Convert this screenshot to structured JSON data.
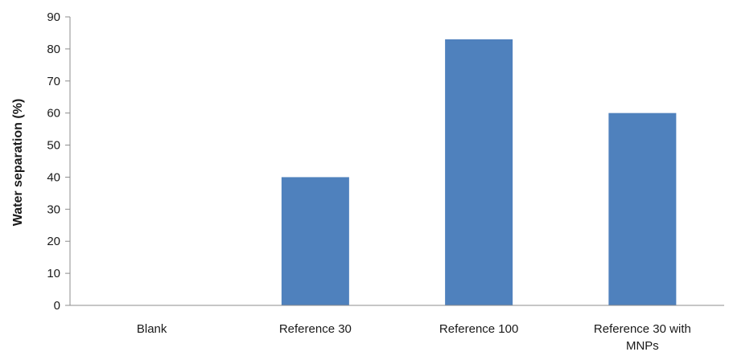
{
  "chart_data": {
    "type": "bar",
    "categories": [
      "Blank",
      "Reference 30",
      "Reference 100",
      "Reference 30 with MNPs"
    ],
    "category_lines": [
      [
        "Blank"
      ],
      [
        "Reference 30"
      ],
      [
        "Reference 100"
      ],
      [
        "Reference 30 with",
        "MNPs"
      ]
    ],
    "values": [
      0,
      40,
      83,
      60
    ],
    "ylabel": "Water separation (%)",
    "xlabel": "",
    "title": "",
    "ylim": [
      0,
      90
    ],
    "yticks": [
      0,
      10,
      20,
      30,
      40,
      50,
      60,
      70,
      80,
      90
    ],
    "grid": false,
    "legend": "none",
    "bar_color": "#4f81bd"
  }
}
